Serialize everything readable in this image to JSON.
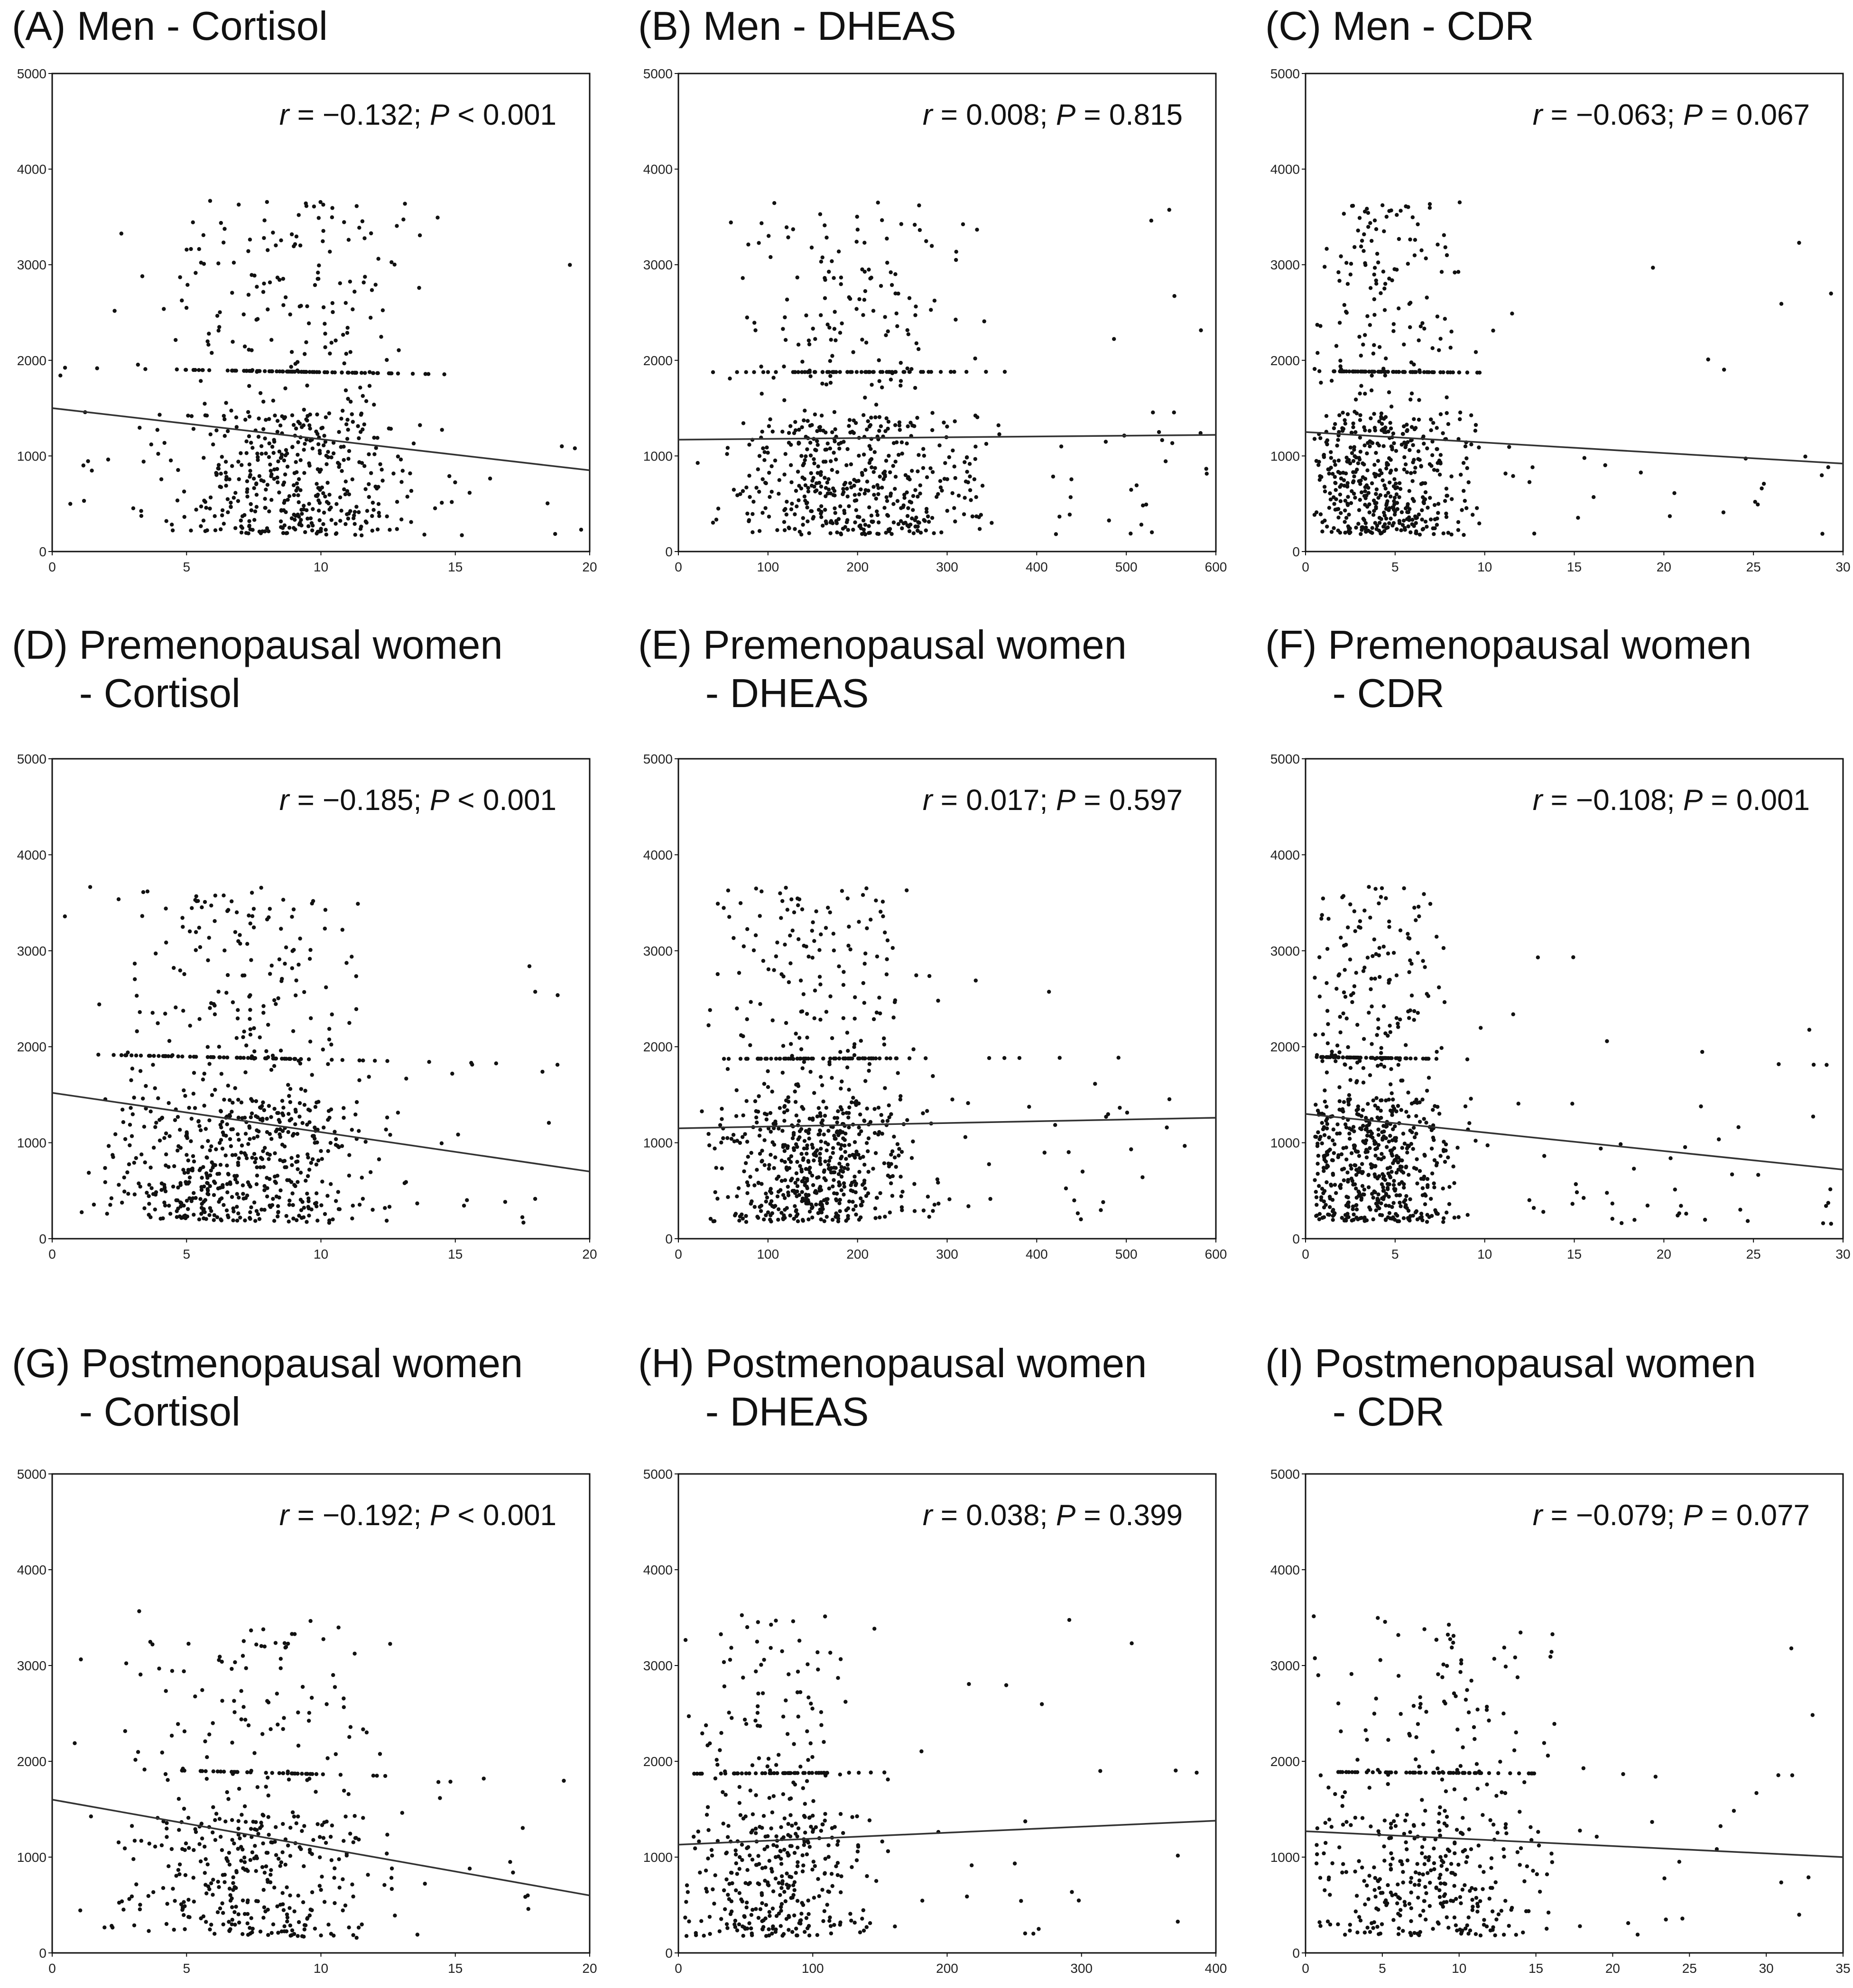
{
  "colors": {
    "point": "#111111",
    "line": "#333333",
    "frame": "#111111"
  },
  "chart_data": [
    {
      "id": "A",
      "type": "scatter",
      "title": "(A) Men - Cortisol",
      "title_lines": [
        "(A) Men - Cortisol"
      ],
      "stat": {
        "r": "−0.132",
        "p_op": "<",
        "p": "0.001"
      },
      "xlim": [
        0,
        20
      ],
      "ylim": [
        0,
        5000
      ],
      "xticks": [
        0,
        5,
        10,
        15,
        20
      ],
      "yticks": [
        0,
        1000,
        2000,
        3000,
        4000,
        5000
      ],
      "fit": {
        "x0": 0,
        "y0": 1500,
        "x1": 20,
        "y1": 850
      },
      "cloud": {
        "n": 700,
        "x_center": 9,
        "x_spread": 3.2,
        "x_min": 0.3,
        "x_max": 19.8,
        "y_peak": 4100,
        "seed": 11
      }
    },
    {
      "id": "B",
      "type": "scatter",
      "title": "(B) Men - DHEAS",
      "title_lines": [
        "(B) Men - DHEAS"
      ],
      "stat": {
        "r": "0.008",
        "p_op": "=",
        "p": "0.815"
      },
      "xlim": [
        0,
        600
      ],
      "ylim": [
        0,
        5000
      ],
      "xticks": [
        0,
        100,
        200,
        300,
        400,
        500,
        600
      ],
      "yticks": [
        0,
        1000,
        2000,
        3000,
        4000,
        5000
      ],
      "fit": {
        "x0": 0,
        "y0": 1170,
        "x1": 600,
        "y1": 1220
      },
      "cloud": {
        "n": 700,
        "x_center": 200,
        "x_spread": 90,
        "x_min": 20,
        "x_max": 590,
        "y_peak": 4100,
        "seed": 23
      }
    },
    {
      "id": "C",
      "type": "scatter",
      "title": "(C) Men - CDR",
      "title_lines": [
        "(C) Men - CDR"
      ],
      "stat": {
        "r": "−0.063",
        "p_op": "=",
        "p": "0.067"
      },
      "xlim": [
        0,
        30
      ],
      "ylim": [
        0,
        5000
      ],
      "xticks": [
        0,
        5,
        10,
        15,
        20,
        25,
        30
      ],
      "yticks": [
        0,
        1000,
        2000,
        3000,
        4000,
        5000
      ],
      "fit": {
        "x0": 0,
        "y0": 1250,
        "x1": 30,
        "y1": 920
      },
      "cloud": {
        "n": 700,
        "x_center": 4.5,
        "x_spread": 3.2,
        "x_min": 0.5,
        "x_max": 29.5,
        "y_peak": 4100,
        "seed": 37
      }
    },
    {
      "id": "D",
      "type": "scatter",
      "title": "(D) Premenopausal women - Cortisol",
      "title_lines": [
        "(D) Premenopausal women",
        "      - Cortisol"
      ],
      "stat": {
        "r": "−0.185",
        "p_op": "<",
        "p": "0.001"
      },
      "xlim": [
        0,
        20
      ],
      "ylim": [
        0,
        5000
      ],
      "xticks": [
        0,
        5,
        10,
        15,
        20
      ],
      "yticks": [
        0,
        1000,
        2000,
        3000,
        4000,
        5000
      ],
      "fit": {
        "x0": 0,
        "y0": 1520,
        "x1": 20,
        "y1": 700
      },
      "cloud": {
        "n": 800,
        "x_center": 7,
        "x_spread": 3.2,
        "x_min": 0.3,
        "x_max": 19.8,
        "y_peak": 4100,
        "seed": 41
      }
    },
    {
      "id": "E",
      "type": "scatter",
      "title": "(E) Premenopausal women - DHEAS",
      "title_lines": [
        "(E) Premenopausal women",
        "      - DHEAS"
      ],
      "stat": {
        "r": "0.017",
        "p_op": "=",
        "p": "0.597"
      },
      "xlim": [
        0,
        600
      ],
      "ylim": [
        0,
        5000
      ],
      "xticks": [
        0,
        100,
        200,
        300,
        400,
        500,
        600
      ],
      "yticks": [
        0,
        1000,
        2000,
        3000,
        4000,
        5000
      ],
      "fit": {
        "x0": 0,
        "y0": 1150,
        "x1": 600,
        "y1": 1260
      },
      "cloud": {
        "n": 800,
        "x_center": 160,
        "x_spread": 75,
        "x_min": 15,
        "x_max": 580,
        "y_peak": 4100,
        "seed": 53
      }
    },
    {
      "id": "F",
      "type": "scatter",
      "title": "(F) Premenopausal women - CDR",
      "title_lines": [
        "(F) Premenopausal women",
        "      - CDR"
      ],
      "stat": {
        "r": "−0.108",
        "p_op": "=",
        "p": "0.001"
      },
      "xlim": [
        0,
        30
      ],
      "ylim": [
        0,
        5000
      ],
      "xticks": [
        0,
        5,
        10,
        15,
        20,
        25,
        30
      ],
      "yticks": [
        0,
        1000,
        2000,
        3000,
        4000,
        5000
      ],
      "fit": {
        "x0": 0,
        "y0": 1300,
        "x1": 30,
        "y1": 720
      },
      "cloud": {
        "n": 800,
        "x_center": 4,
        "x_spread": 3,
        "x_min": 0.5,
        "x_max": 29.5,
        "y_peak": 4100,
        "seed": 67
      }
    },
    {
      "id": "G",
      "type": "scatter",
      "title": "(G) Postmenopausal women - Cortisol",
      "title_lines": [
        "(G) Postmenopausal women",
        "      - Cortisol"
      ],
      "stat": {
        "r": "−0.192",
        "p_op": "<",
        "p": "0.001"
      },
      "xlim": [
        0,
        20
      ],
      "ylim": [
        0,
        5000
      ],
      "xticks": [
        0,
        5,
        10,
        15,
        20
      ],
      "yticks": [
        0,
        1000,
        2000,
        3000,
        4000,
        5000
      ],
      "fit": {
        "x0": 0,
        "y0": 1600,
        "x1": 20,
        "y1": 600
      },
      "cloud": {
        "n": 500,
        "x_center": 7.5,
        "x_spread": 3.2,
        "x_min": 0.3,
        "x_max": 19.8,
        "y_peak": 3950,
        "seed": 71
      }
    },
    {
      "id": "H",
      "type": "scatter",
      "title": "(H) Postmenopausal women - DHEAS",
      "title_lines": [
        "(H) Postmenopausal women",
        "      - DHEAS"
      ],
      "stat": {
        "r": "0.038",
        "p_op": "=",
        "p": "0.399"
      },
      "xlim": [
        0,
        400
      ],
      "ylim": [
        0,
        5000
      ],
      "xticks": [
        0,
        100,
        200,
        300,
        400
      ],
      "yticks": [
        0,
        1000,
        2000,
        3000,
        4000,
        5000
      ],
      "fit": {
        "x0": 0,
        "y0": 1130,
        "x1": 400,
        "y1": 1380
      },
      "cloud": {
        "n": 500,
        "x_center": 75,
        "x_spread": 45,
        "x_min": 5,
        "x_max": 390,
        "y_peak": 3950,
        "seed": 83
      }
    },
    {
      "id": "I",
      "type": "scatter",
      "title": "(I) Postmenopausal women - CDR",
      "title_lines": [
        "(I) Postmenopausal women",
        "      - CDR"
      ],
      "stat": {
        "r": "−0.079",
        "p_op": "=",
        "p": "0.077"
      },
      "xlim": [
        0,
        35
      ],
      "ylim": [
        0,
        5000
      ],
      "xticks": [
        0,
        5,
        10,
        15,
        20,
        25,
        30,
        35
      ],
      "yticks": [
        0,
        1000,
        2000,
        3000,
        4000,
        5000
      ],
      "fit": {
        "x0": 0,
        "y0": 1270,
        "x1": 35,
        "y1": 1000
      },
      "cloud": {
        "n": 500,
        "x_center": 8,
        "x_spread": 5,
        "x_min": 0.5,
        "x_max": 34.5,
        "y_peak": 3950,
        "seed": 97
      }
    }
  ]
}
